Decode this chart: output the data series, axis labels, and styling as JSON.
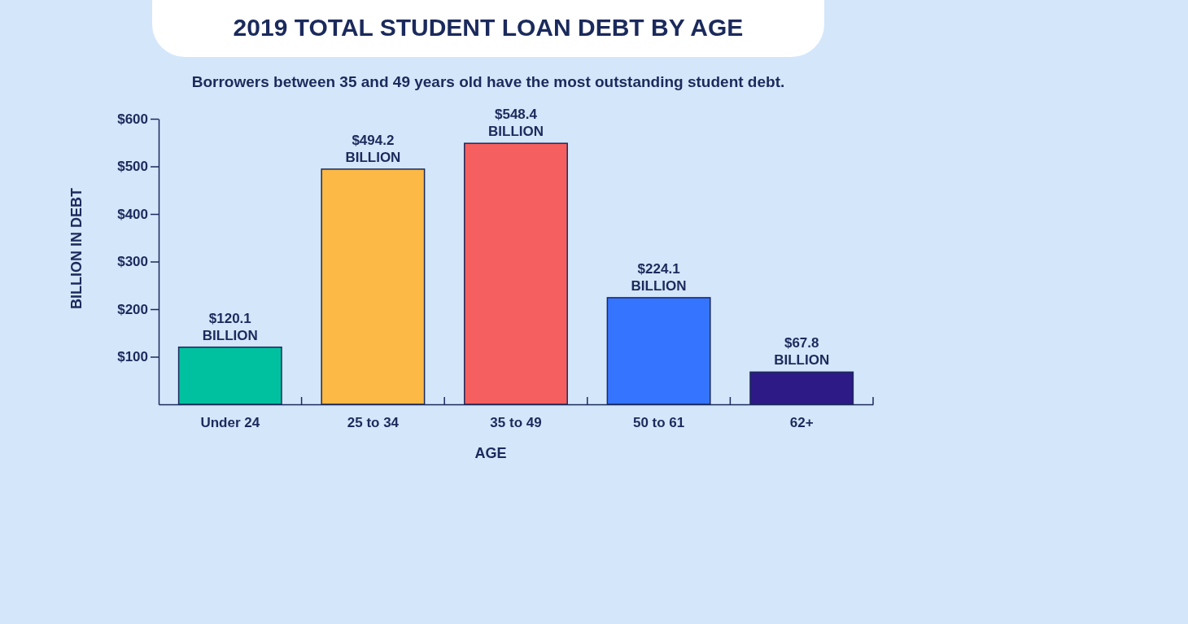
{
  "chart_data": {
    "type": "bar",
    "title": "2019 TOTAL STUDENT LOAN DEBT BY AGE",
    "subtitle": "Borrowers between 35 and 49 years old have the most outstanding student debt.",
    "xlabel": "AGE",
    "ylabel": "BILLION IN DEBT",
    "categories": [
      "Under 24",
      "25 to 34",
      "35 to 49",
      "50 to 61",
      "62+"
    ],
    "values": [
      120.1,
      494.2,
      548.4,
      224.1,
      67.8
    ],
    "colors": [
      "#00c19f",
      "#fdb945",
      "#f65f5f",
      "#3574ff",
      "#2e1a87"
    ],
    "value_labels": [
      "$120.1 BILLION",
      "$494.2 BILLION",
      "$548.4 BILLION",
      "$224.1 BILLION",
      "$67.8 BILLION"
    ],
    "ylim": [
      0,
      600
    ],
    "yticks": [
      {
        "value": 100,
        "label": "$100"
      },
      {
        "value": 200,
        "label": "$200"
      },
      {
        "value": 300,
        "label": "$300"
      },
      {
        "value": 400,
        "label": "$400"
      },
      {
        "value": 500,
        "label": "$500"
      },
      {
        "value": 600,
        "label": "$600"
      }
    ],
    "grid": false
  }
}
